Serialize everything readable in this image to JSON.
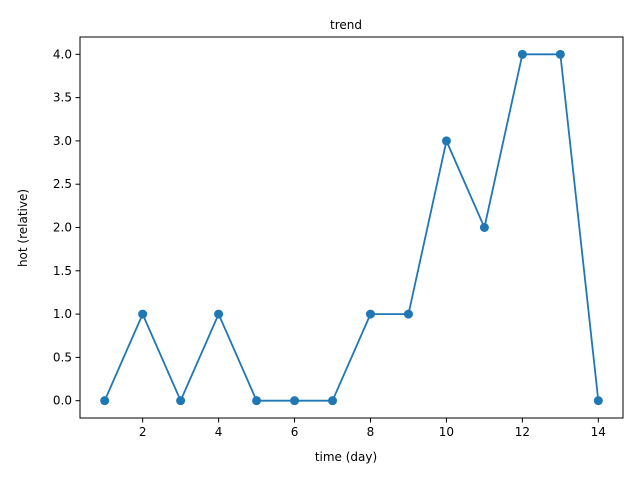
{
  "chart_data": {
    "type": "line",
    "title": "trend",
    "xlabel": "time (day)",
    "ylabel": "hot (relative)",
    "x": [
      1,
      2,
      3,
      4,
      5,
      6,
      7,
      8,
      9,
      10,
      11,
      12,
      13,
      14
    ],
    "series": [
      {
        "values": [
          0,
          1,
          0,
          1,
          0,
          0,
          0,
          1,
          1,
          3,
          2,
          4,
          4,
          0
        ],
        "color": "#1f77b4",
        "marker": "circle"
      }
    ],
    "xlim": [
      0.35,
      14.65
    ],
    "ylim": [
      -0.2,
      4.2
    ],
    "xticks": [
      "2",
      "4",
      "6",
      "8",
      "10",
      "12",
      "14"
    ],
    "yticks": [
      "0.0",
      "0.5",
      "1.0",
      "1.5",
      "2.0",
      "2.5",
      "3.0",
      "3.5",
      "4.0"
    ],
    "grid": false,
    "legend": false
  }
}
